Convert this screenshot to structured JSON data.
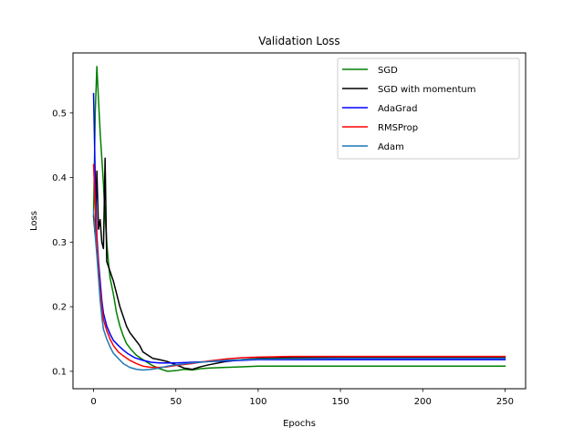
{
  "chart_data": {
    "type": "line",
    "title": "Validation Loss",
    "xlabel": "Epochs",
    "ylabel": "Loss",
    "xlim": [
      -12.5,
      262.5
    ],
    "ylim": [
      0.073,
      0.593
    ],
    "xticks": [
      0,
      50,
      100,
      150,
      200,
      250
    ],
    "yticks": [
      0.1,
      0.2,
      0.3,
      0.4,
      0.5
    ],
    "ytick_labels": [
      "0.1",
      "0.2",
      "0.3",
      "0.4",
      "0.5"
    ],
    "grid": false,
    "legend_position": "top-right",
    "series": [
      {
        "name": "SGD",
        "color": "#008000",
        "points": [
          [
            0,
            0.34
          ],
          [
            1,
            0.5
          ],
          [
            2,
            0.572
          ],
          [
            3,
            0.52
          ],
          [
            4,
            0.47
          ],
          [
            5,
            0.43
          ],
          [
            6,
            0.39
          ],
          [
            7,
            0.34
          ],
          [
            8,
            0.3
          ],
          [
            9,
            0.27
          ],
          [
            10,
            0.245
          ],
          [
            12,
            0.22
          ],
          [
            14,
            0.19
          ],
          [
            16,
            0.17
          ],
          [
            18,
            0.155
          ],
          [
            20,
            0.143
          ],
          [
            23,
            0.133
          ],
          [
            26,
            0.125
          ],
          [
            30,
            0.118
          ],
          [
            35,
            0.11
          ],
          [
            40,
            0.104
          ],
          [
            45,
            0.1
          ],
          [
            50,
            0.101
          ],
          [
            55,
            0.103
          ],
          [
            60,
            0.102
          ],
          [
            65,
            0.104
          ],
          [
            70,
            0.105
          ],
          [
            80,
            0.106
          ],
          [
            90,
            0.107
          ],
          [
            100,
            0.108
          ],
          [
            120,
            0.108
          ],
          [
            150,
            0.108
          ],
          [
            200,
            0.108
          ],
          [
            250,
            0.108
          ]
        ]
      },
      {
        "name": "SGD with momentum",
        "color": "#000000",
        "points": [
          [
            0,
            0.34
          ],
          [
            1,
            0.31
          ],
          [
            2,
            0.41
          ],
          [
            3,
            0.32
          ],
          [
            4,
            0.335
          ],
          [
            5,
            0.3
          ],
          [
            6,
            0.29
          ],
          [
            7,
            0.43
          ],
          [
            8,
            0.27
          ],
          [
            10,
            0.255
          ],
          [
            12,
            0.24
          ],
          [
            14,
            0.22
          ],
          [
            16,
            0.2
          ],
          [
            18,
            0.185
          ],
          [
            20,
            0.17
          ],
          [
            22,
            0.16
          ],
          [
            25,
            0.15
          ],
          [
            28,
            0.14
          ],
          [
            30,
            0.13
          ],
          [
            33,
            0.125
          ],
          [
            36,
            0.12
          ],
          [
            40,
            0.118
          ],
          [
            45,
            0.115
          ],
          [
            50,
            0.11
          ],
          [
            55,
            0.105
          ],
          [
            60,
            0.103
          ],
          [
            65,
            0.107
          ],
          [
            70,
            0.11
          ],
          [
            80,
            0.115
          ],
          [
            90,
            0.118
          ],
          [
            100,
            0.12
          ],
          [
            120,
            0.121
          ],
          [
            150,
            0.121
          ],
          [
            200,
            0.121
          ],
          [
            250,
            0.121
          ]
        ]
      },
      {
        "name": "AdaGrad",
        "color": "#0000ff",
        "points": [
          [
            0,
            0.53
          ],
          [
            1,
            0.4
          ],
          [
            2,
            0.31
          ],
          [
            3,
            0.27
          ],
          [
            4,
            0.24
          ],
          [
            5,
            0.21
          ],
          [
            6,
            0.19
          ],
          [
            8,
            0.17
          ],
          [
            10,
            0.158
          ],
          [
            12,
            0.148
          ],
          [
            15,
            0.14
          ],
          [
            18,
            0.133
          ],
          [
            21,
            0.127
          ],
          [
            25,
            0.121
          ],
          [
            30,
            0.117
          ],
          [
            35,
            0.114
          ],
          [
            40,
            0.113
          ],
          [
            45,
            0.113
          ],
          [
            50,
            0.113
          ],
          [
            60,
            0.114
          ],
          [
            70,
            0.115
          ],
          [
            80,
            0.116
          ],
          [
            90,
            0.117
          ],
          [
            100,
            0.118
          ],
          [
            150,
            0.118
          ],
          [
            200,
            0.118
          ],
          [
            250,
            0.118
          ]
        ]
      },
      {
        "name": "RMSProp",
        "color": "#ff0000",
        "points": [
          [
            0,
            0.42
          ],
          [
            1,
            0.36
          ],
          [
            2,
            0.3
          ],
          [
            3,
            0.26
          ],
          [
            4,
            0.225
          ],
          [
            5,
            0.2
          ],
          [
            6,
            0.18
          ],
          [
            8,
            0.163
          ],
          [
            10,
            0.15
          ],
          [
            12,
            0.14
          ],
          [
            15,
            0.13
          ],
          [
            18,
            0.124
          ],
          [
            22,
            0.117
          ],
          [
            26,
            0.112
          ],
          [
            30,
            0.108
          ],
          [
            35,
            0.106
          ],
          [
            40,
            0.106
          ],
          [
            45,
            0.107
          ],
          [
            50,
            0.109
          ],
          [
            60,
            0.112
          ],
          [
            70,
            0.116
          ],
          [
            80,
            0.119
          ],
          [
            90,
            0.121
          ],
          [
            100,
            0.122
          ],
          [
            120,
            0.123
          ],
          [
            150,
            0.123
          ],
          [
            200,
            0.123
          ],
          [
            250,
            0.123
          ]
        ]
      },
      {
        "name": "Adam",
        "color": "#1f77b4",
        "points": [
          [
            0,
            0.35
          ],
          [
            1,
            0.31
          ],
          [
            2,
            0.28
          ],
          [
            3,
            0.245
          ],
          [
            4,
            0.21
          ],
          [
            5,
            0.185
          ],
          [
            6,
            0.165
          ],
          [
            8,
            0.15
          ],
          [
            10,
            0.138
          ],
          [
            12,
            0.128
          ],
          [
            15,
            0.12
          ],
          [
            18,
            0.112
          ],
          [
            22,
            0.106
          ],
          [
            26,
            0.103
          ],
          [
            30,
            0.102
          ],
          [
            35,
            0.103
          ],
          [
            40,
            0.105
          ],
          [
            45,
            0.108
          ],
          [
            50,
            0.11
          ],
          [
            60,
            0.113
          ],
          [
            70,
            0.115
          ],
          [
            80,
            0.117
          ],
          [
            90,
            0.118
          ],
          [
            100,
            0.119
          ],
          [
            150,
            0.12
          ],
          [
            200,
            0.12
          ],
          [
            250,
            0.12
          ]
        ]
      }
    ]
  }
}
